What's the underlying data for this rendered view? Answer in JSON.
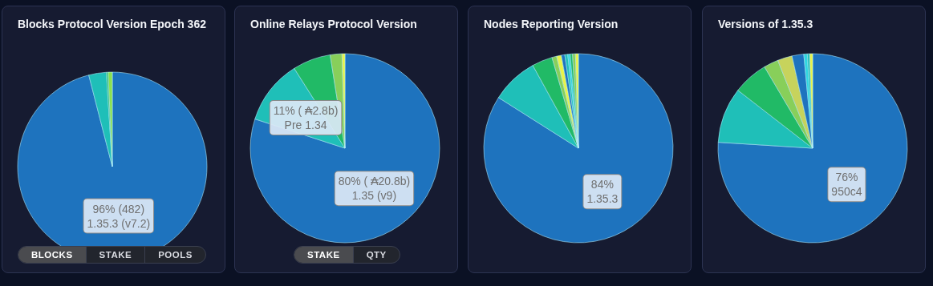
{
  "chart_data": [
    {
      "type": "pie",
      "title": "Blocks Protocol Version Epoch 362",
      "categories": [
        "1.35.3 (v7.2)",
        null,
        null,
        null
      ],
      "values": [
        96,
        3,
        0.3,
        0.7
      ],
      "colors": [
        "#1e73be",
        "#1fbfb8",
        "#21ba66",
        "#8be04e"
      ],
      "value_labels": [
        "96% (482)",
        null,
        null,
        null
      ],
      "annotations": [
        "BLOCKS",
        "STAKE",
        "POOLS"
      ]
    },
    {
      "type": "pie",
      "title": "Online Relays Protocol Version",
      "categories": [
        "1.35 (v9)",
        "Pre 1.34",
        null,
        null,
        null
      ],
      "values": [
        80,
        11,
        6.5,
        2,
        0.5
      ],
      "colors": [
        "#1e73be",
        "#1fbfb8",
        "#21ba66",
        "#88cf5a",
        "#e8f34a"
      ],
      "value_labels": [
        "80% ( ₳20.8b)",
        "11% ( ₳2.8b)",
        null,
        null,
        null
      ],
      "annotations": [
        "STAKE",
        "QTY"
      ]
    },
    {
      "type": "pie",
      "title": "Nodes Reporting Version",
      "categories": [
        "1.35.3",
        null,
        null,
        null,
        null,
        null,
        null,
        null,
        null,
        null,
        null
      ],
      "values": [
        84,
        8,
        3.5,
        0.8,
        0.8,
        0.6,
        0.5,
        0.4,
        0.4,
        0.5,
        0.5
      ],
      "colors": [
        "#1e73be",
        "#1fbfb8",
        "#21ba66",
        "#88cf5a",
        "#e8f34a",
        "#1e73be",
        "#1fbfb8",
        "#2fd6e0",
        "#21ba66",
        "#88cf5a",
        "#e8f34a"
      ],
      "value_labels": [
        "84%",
        null,
        null,
        null,
        null,
        null,
        null,
        null,
        null,
        null,
        null
      ]
    },
    {
      "type": "pie",
      "title": "Versions of 1.35.3",
      "categories": [
        "950c4",
        null,
        null,
        null,
        null,
        null,
        null,
        null,
        null
      ],
      "values": [
        76,
        9.5,
        6,
        2.5,
        2.5,
        2,
        0.6,
        0.4,
        0.5
      ],
      "colors": [
        "#1e73be",
        "#1fbfb8",
        "#21ba66",
        "#88cf5a",
        "#c7d35c",
        "#1e73be",
        "#2fd6e0",
        "#1fbfb8",
        "#e8f34a"
      ],
      "value_labels": [
        "76%",
        null,
        null,
        null,
        null,
        null,
        null,
        null,
        null
      ]
    }
  ]
}
